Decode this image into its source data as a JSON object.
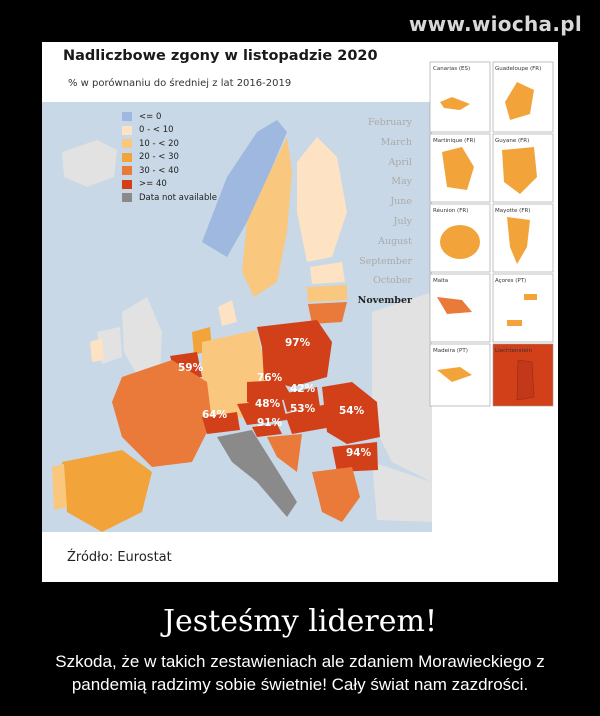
{
  "watermark": "www.wiocha.pl",
  "map": {
    "title": "Nadliczbowe zgony w listopadzie 2020",
    "subtitle": "% w porównaniu do średniej z lat 2016-2019",
    "legend": [
      {
        "label": "<= 0",
        "color": "#9fb8e0"
      },
      {
        "label": "0 - < 10",
        "color": "#fde2c4"
      },
      {
        "label": "10 - < 20",
        "color": "#f9c77e"
      },
      {
        "label": "20 - < 30",
        "color": "#f2a43a"
      },
      {
        "label": "30 - < 40",
        "color": "#ea7a3a"
      },
      {
        "label": ">= 40",
        "color": "#d2401a"
      },
      {
        "label": "Data not available",
        "color": "#8a8a8a"
      }
    ],
    "months": [
      "February",
      "March",
      "April",
      "May",
      "June",
      "July",
      "August",
      "September",
      "October",
      "November"
    ],
    "active_month": "November",
    "country_labels": {
      "be": "59%",
      "de": "76%",
      "pl": "97%",
      "cz": "42%",
      "at": "48%",
      "sk": "53%",
      "ro": "54%",
      "ch": "64%",
      "si": "91%",
      "bg": "94%"
    },
    "insets": [
      "Canarias (ES)",
      "Guadeloupe (FR)",
      "Martinique (FR)",
      "Guyane (FR)",
      "Réunion (FR)",
      "Mayotte (FR)",
      "Malta",
      "Açores (PT)",
      "Madeira (PT)",
      "Liechtenstein"
    ],
    "source": "Źródło: Eurostat"
  },
  "tagline": "Jesteśmy liderem!",
  "caption": "Szkoda, że w takich zestawieniach ale zdaniem Morawieckiego z pandemią radzimy sobie świetnie! Cały świat nam zazdrości."
}
